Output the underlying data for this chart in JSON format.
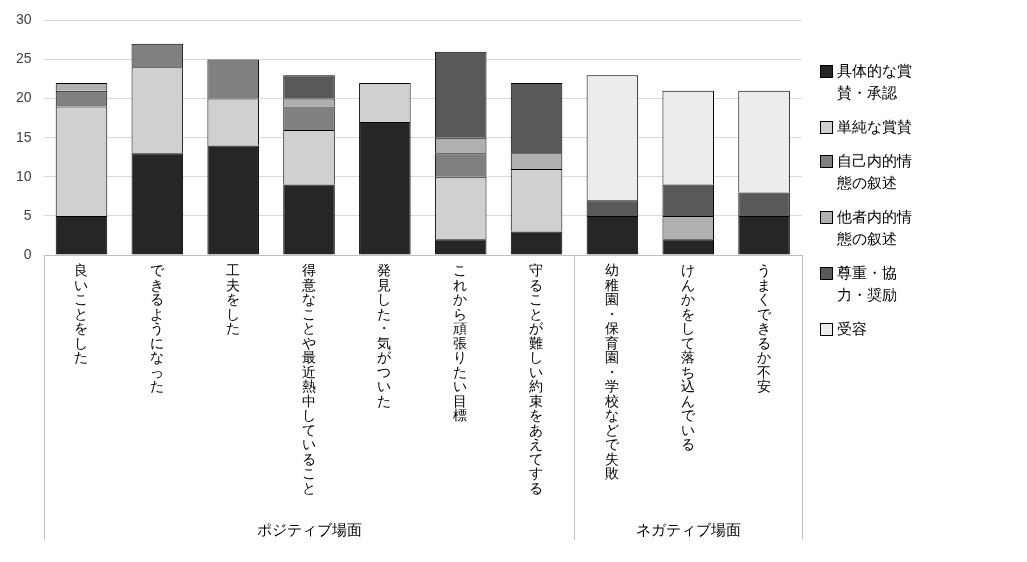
{
  "chart_data": {
    "type": "bar",
    "stacked": true,
    "categories": [
      "良いことをした",
      "できるようになった",
      "工夫をした",
      "得意なことや最近熱中していること",
      "発見した・気がついた",
      "これから頑張りたい目標",
      "守ることが難しい約束をあえてする",
      "幼稚園・保育園・学校などで失敗",
      "けんかをして落ち込んでいる",
      "うまくできるか不安"
    ],
    "series": [
      {
        "name": "具体的な賞賛・承認",
        "color": "#262626",
        "values": [
          5,
          13,
          14,
          9,
          17,
          2,
          3,
          5,
          2,
          5
        ]
      },
      {
        "name": "単純な賞賛",
        "color": "#d0d0d0",
        "values": [
          14,
          11,
          6,
          7,
          5,
          8,
          8,
          0,
          0,
          0
        ]
      },
      {
        "name": "自己内的情態の叙述",
        "color": "#808080",
        "values": [
          2,
          3,
          5,
          3,
          0,
          3,
          0,
          0,
          0,
          0
        ]
      },
      {
        "name": "他者内的情態の叙述",
        "color": "#b0b0b0",
        "values": [
          1,
          0,
          0,
          1,
          0,
          2,
          2,
          0,
          3,
          0
        ]
      },
      {
        "name": "尊重・協力・奨励",
        "color": "#595959",
        "values": [
          0,
          0,
          0,
          3,
          0,
          11,
          9,
          2,
          4,
          3
        ]
      },
      {
        "name": "受容",
        "color": "#ececec",
        "values": [
          0,
          0,
          0,
          0,
          0,
          0,
          0,
          16,
          12,
          13
        ]
      }
    ],
    "annotations": [
      "ポジティブ場面",
      "ネガティブ場面"
    ],
    "ylim": [
      0,
      30
    ],
    "yticks": [
      0,
      5,
      10,
      15,
      20,
      25,
      30
    ],
    "grid": "y",
    "legend": "right"
  }
}
